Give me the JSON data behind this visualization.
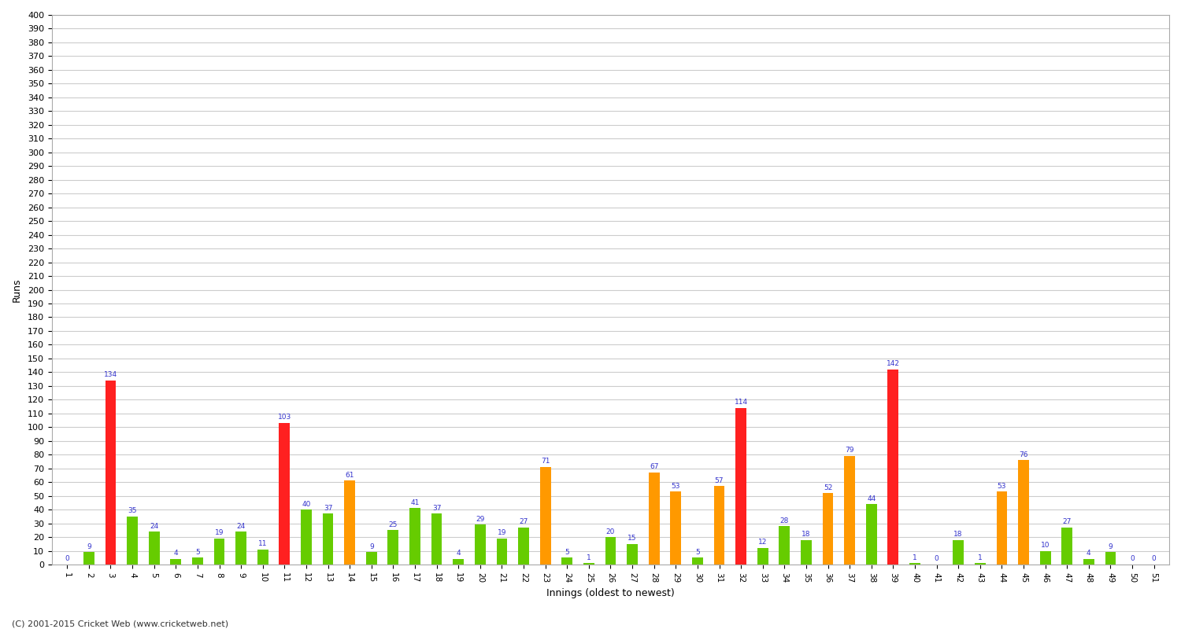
{
  "title": "",
  "xlabel": "Innings (oldest to newest)",
  "ylabel": "Runs",
  "ylim": [
    0,
    400
  ],
  "innings_labels": [
    "1",
    "2",
    "3",
    "4",
    "5",
    "6",
    "7",
    "8",
    "9",
    "10",
    "11",
    "12",
    "13",
    "14",
    "15",
    "16",
    "17",
    "18",
    "19",
    "20",
    "21",
    "22",
    "23",
    "24",
    "25",
    "26",
    "27",
    "28",
    "29",
    "30",
    "31",
    "32",
    "33",
    "34",
    "35",
    "36",
    "37",
    "38",
    "39",
    "40",
    "41",
    "42",
    "43",
    "44",
    "45",
    "46",
    "47",
    "48",
    "49",
    "50",
    "51"
  ],
  "values": [
    0,
    9,
    134,
    35,
    24,
    4,
    5,
    19,
    24,
    11,
    103,
    40,
    37,
    61,
    9,
    25,
    41,
    37,
    4,
    29,
    19,
    27,
    71,
    5,
    1,
    20,
    15,
    67,
    53,
    5,
    57,
    114,
    12,
    28,
    18,
    52,
    79,
    44,
    142,
    1,
    0,
    18,
    1,
    53,
    76,
    10,
    27,
    4,
    9,
    0,
    0
  ],
  "color_red": "#ff2020",
  "color_orange": "#ff9900",
  "color_green": "#66cc00",
  "label_color": "#3333cc",
  "background_color": "#ffffff",
  "grid_color": "#cccccc",
  "footer": "(C) 2001-2015 Cricket Web (www.cricketweb.net)"
}
